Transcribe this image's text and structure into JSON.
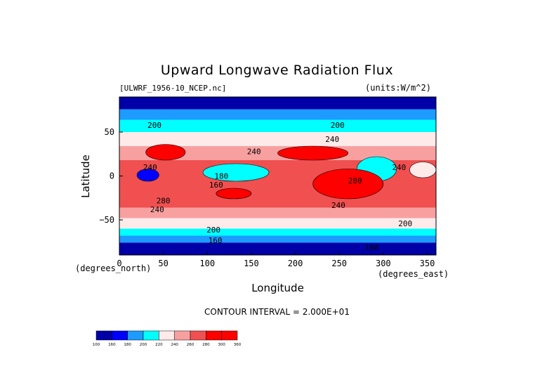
{
  "chart_data": {
    "type": "heatmap",
    "title": "Upward Longwave Radiation Flux",
    "subtitle": "[ULWRF_1956-10_NCEP.nc]",
    "units_label": "(units:W/m^2)",
    "xlabel": "Longitude",
    "ylabel": "Latitude",
    "x_unit_label": "(degrees_east)",
    "y_unit_label": "(degrees_north)",
    "xlim": [
      0,
      360
    ],
    "ylim": [
      -90,
      90
    ],
    "x_ticks": [
      0,
      50,
      100,
      150,
      200,
      250,
      300,
      350
    ],
    "y_ticks": [
      -50,
      0,
      50
    ],
    "x_tick_labels": [
      "0",
      "50",
      "100",
      "150",
      "200",
      "250",
      "300",
      "350"
    ],
    "y_tick_labels": [
      "−50",
      "0",
      "50"
    ],
    "contour_interval_label": "CONTOUR INTERVAL = 2.000E+01",
    "colorbar": {
      "levels": [
        100,
        160,
        180,
        200,
        220,
        240,
        260,
        280,
        300,
        360
      ],
      "level_labels": [
        "100",
        "160",
        "180",
        "200",
        "220",
        "240",
        "260",
        "280",
        "300",
        "360"
      ],
      "colors": [
        "#0000a6",
        "#0000ff",
        "#1e9bff",
        "#00ffff",
        "#ffeaea",
        "#f8a0a0",
        "#f05050",
        "#ff0000",
        "#ff0000"
      ]
    },
    "contour_labels": [
      {
        "text": "200",
        "lon": 40,
        "lat": 58
      },
      {
        "text": "200",
        "lon": 248,
        "lat": 58
      },
      {
        "text": "240",
        "lon": 242,
        "lat": 42
      },
      {
        "text": "240",
        "lon": 153,
        "lat": 28
      },
      {
        "text": "240",
        "lon": 35,
        "lat": 10
      },
      {
        "text": "240",
        "lon": 318,
        "lat": 10
      },
      {
        "text": "180",
        "lon": 116,
        "lat": 0
      },
      {
        "text": "160",
        "lon": 110,
        "lat": -10
      },
      {
        "text": "280",
        "lon": 268,
        "lat": -5
      },
      {
        "text": "280",
        "lon": 50,
        "lat": -28
      },
      {
        "text": "240",
        "lon": 43,
        "lat": -38
      },
      {
        "text": "240",
        "lon": 249,
        "lat": -33
      },
      {
        "text": "200",
        "lon": 107,
        "lat": -61
      },
      {
        "text": "200",
        "lon": 325,
        "lat": -54
      },
      {
        "text": "160",
        "lon": 109,
        "lat": -73
      },
      {
        "text": "160",
        "lon": 287,
        "lat": -81
      }
    ],
    "zonal_bands": [
      {
        "lat_from": 90,
        "lat_to": 76,
        "value": 150
      },
      {
        "lat_from": 76,
        "lat_to": 64,
        "value": 190
      },
      {
        "lat_from": 64,
        "lat_to": 50,
        "value": 210
      },
      {
        "lat_from": 50,
        "lat_to": 34,
        "value": 230
      },
      {
        "lat_from": 34,
        "lat_to": 18,
        "value": 250
      },
      {
        "lat_from": 18,
        "lat_to": -18,
        "value": 270
      },
      {
        "lat_from": -18,
        "lat_to": -36,
        "value": 270
      },
      {
        "lat_from": -36,
        "lat_to": -48,
        "value": 250
      },
      {
        "lat_from": -48,
        "lat_to": -60,
        "value": 230
      },
      {
        "lat_from": -60,
        "lat_to": -68,
        "value": 210
      },
      {
        "lat_from": -68,
        "lat_to": -76,
        "value": 190
      },
      {
        "lat_from": -76,
        "lat_to": -90,
        "value": 150
      }
    ],
    "regional_features": [
      {
        "lon": [
          30,
          75
        ],
        "lat": [
          18,
          36
        ],
        "value": 310
      },
      {
        "lon": [
          110,
          150
        ],
        "lat": [
          -26,
          -14
        ],
        "value": 310
      },
      {
        "lon": [
          20,
          45
        ],
        "lat": [
          -6,
          8
        ],
        "value": 170
      },
      {
        "lon": [
          95,
          170
        ],
        "lat": [
          -6,
          14
        ],
        "value": 210
      },
      {
        "lon": [
          270,
          315
        ],
        "lat": [
          -6,
          22
        ],
        "value": 210
      },
      {
        "lon": [
          220,
          300
        ],
        "lat": [
          -26,
          8
        ],
        "value": 280
      },
      {
        "lon": [
          180,
          260
        ],
        "lat": [
          18,
          34
        ],
        "value": 280
      },
      {
        "lon": [
          330,
          360
        ],
        "lat": [
          -2,
          16
        ],
        "value": 230
      }
    ]
  }
}
